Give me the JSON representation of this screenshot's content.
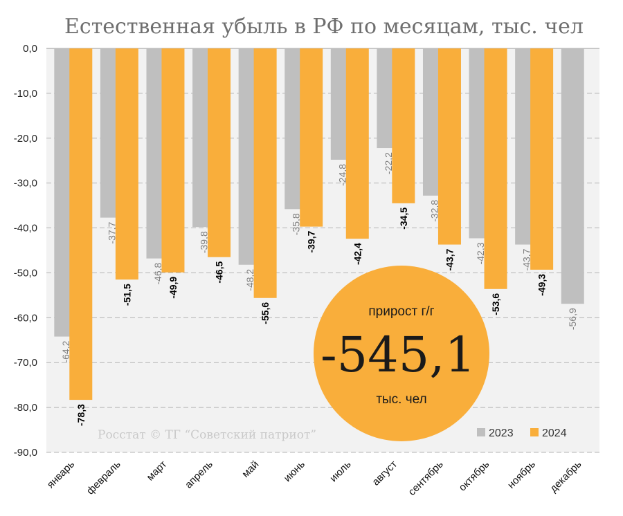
{
  "chart_data": {
    "type": "bar",
    "title": "Естественная убыль в РФ по месяцам, тыс. чел",
    "categories": [
      "январь",
      "февраль",
      "март",
      "апрель",
      "май",
      "июнь",
      "июль",
      "август",
      "сентябрь",
      "октябрь",
      "ноябрь",
      "декабрь"
    ],
    "series": [
      {
        "name": "2023",
        "color": "#bfbfbf",
        "values": [
          -64.2,
          -37.7,
          -46.8,
          -39.8,
          -48.2,
          -35.8,
          -24.8,
          -22.2,
          -32.8,
          -42.3,
          -43.7,
          -56.9
        ],
        "labels": [
          "-64,2",
          "-37,7",
          "-46,8",
          "-39,8",
          "-48,2",
          "-35,8",
          "-24,8",
          "-22,2",
          "-32,8",
          "-42,3",
          "-43,7",
          "-56,9"
        ]
      },
      {
        "name": "2024",
        "color": "#f9ae3b",
        "values": [
          -78.3,
          -51.5,
          -49.9,
          -46.5,
          -55.6,
          -39.7,
          -42.4,
          -34.5,
          -43.7,
          -53.6,
          -49.3,
          null
        ],
        "labels": [
          "-78,3",
          "-51,5",
          "-49,9",
          "-46,5",
          "-55,6",
          "-39,7",
          "-42,4",
          "-34,5",
          "-43,7",
          "-53,6",
          "-49,3",
          ""
        ]
      }
    ],
    "ylim": [
      -90,
      0
    ],
    "yticks": [
      0,
      -10,
      -20,
      -30,
      -40,
      -50,
      -60,
      -70,
      -80,
      -90
    ],
    "ytick_labels": [
      "0,0",
      "-10,0",
      "-20,0",
      "-30,0",
      "-40,0",
      "-50,0",
      "-60,0",
      "-70,0",
      "-80,0",
      "-90,0"
    ],
    "grid": true,
    "legend_position": "bottom-right",
    "source": "Росстат © ТГ “Советский патриот”",
    "badge": {
      "top": "прирост г/г",
      "value": "-545,1",
      "unit": "тыс. чел",
      "color": "#f9ae3b"
    }
  }
}
